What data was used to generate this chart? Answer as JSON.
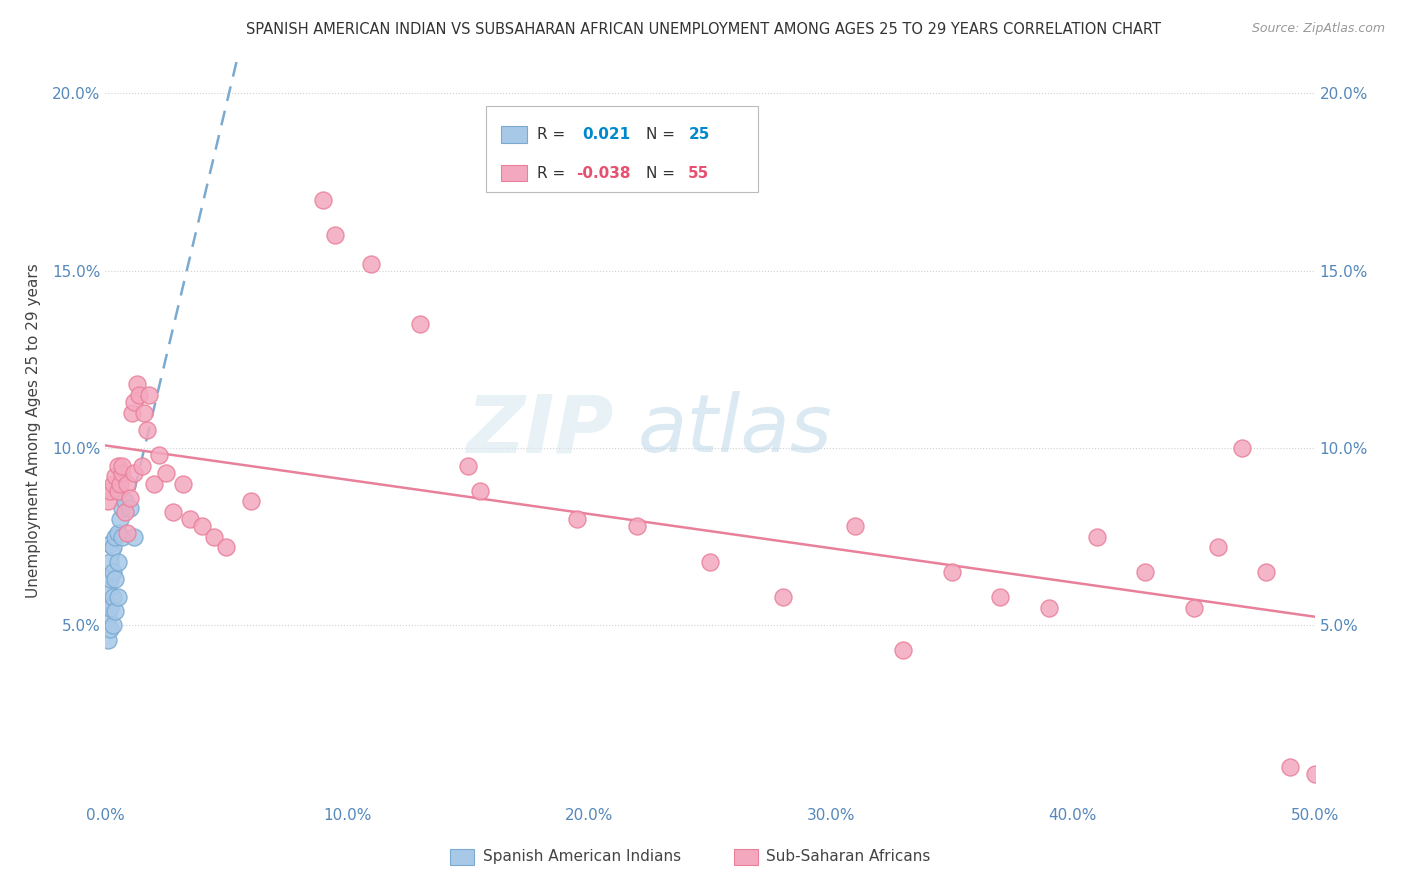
{
  "title": "SPANISH AMERICAN INDIAN VS SUBSAHARAN AFRICAN UNEMPLOYMENT AMONG AGES 25 TO 29 YEARS CORRELATION CHART",
  "source": "Source: ZipAtlas.com",
  "ylabel": "Unemployment Among Ages 25 to 29 years",
  "xlim": [
    0,
    0.5
  ],
  "ylim": [
    0,
    0.21
  ],
  "xtick_vals": [
    0.0,
    0.1,
    0.2,
    0.3,
    0.4,
    0.5
  ],
  "xtick_labels": [
    "0.0%",
    "10.0%",
    "20.0%",
    "30.0%",
    "40.0%",
    "50.0%"
  ],
  "ytick_vals": [
    0.0,
    0.05,
    0.1,
    0.15,
    0.2
  ],
  "ytick_labels": [
    "",
    "5.0%",
    "10.0%",
    "15.0%",
    "20.0%"
  ],
  "watermark": "ZIPatlas",
  "color_blue": "#a8c8e8",
  "color_pink": "#f4a8c0",
  "edge_blue": "#7aaad0",
  "edge_pink": "#e8809a",
  "trendline_blue_color": "#7aaad0",
  "trendline_pink_color": "#e8809a",
  "label_blue": "Spanish American Indians",
  "label_pink": "Sub-Saharan Africans",
  "blue_x": [
    0.001,
    0.001,
    0.001,
    0.001,
    0.002,
    0.002,
    0.002,
    0.002,
    0.002,
    0.003,
    0.003,
    0.003,
    0.003,
    0.004,
    0.004,
    0.004,
    0.005,
    0.005,
    0.005,
    0.006,
    0.007,
    0.007,
    0.008,
    0.01,
    0.012
  ],
  "blue_y": [
    0.046,
    0.052,
    0.056,
    0.06,
    0.049,
    0.055,
    0.063,
    0.068,
    0.073,
    0.05,
    0.058,
    0.065,
    0.072,
    0.054,
    0.063,
    0.075,
    0.058,
    0.068,
    0.076,
    0.08,
    0.075,
    0.083,
    0.085,
    0.083,
    0.075
  ],
  "pink_x": [
    0.001,
    0.002,
    0.003,
    0.004,
    0.005,
    0.005,
    0.006,
    0.007,
    0.007,
    0.008,
    0.009,
    0.009,
    0.01,
    0.011,
    0.012,
    0.012,
    0.013,
    0.014,
    0.015,
    0.016,
    0.017,
    0.018,
    0.02,
    0.022,
    0.025,
    0.028,
    0.032,
    0.035,
    0.04,
    0.045,
    0.05,
    0.06,
    0.09,
    0.095,
    0.11,
    0.13,
    0.15,
    0.155,
    0.195,
    0.22,
    0.25,
    0.28,
    0.31,
    0.33,
    0.35,
    0.37,
    0.39,
    0.41,
    0.43,
    0.45,
    0.46,
    0.47,
    0.48,
    0.49,
    0.5
  ],
  "pink_y": [
    0.085,
    0.088,
    0.09,
    0.092,
    0.088,
    0.095,
    0.09,
    0.093,
    0.095,
    0.082,
    0.076,
    0.09,
    0.086,
    0.11,
    0.093,
    0.113,
    0.118,
    0.115,
    0.095,
    0.11,
    0.105,
    0.115,
    0.09,
    0.098,
    0.093,
    0.082,
    0.09,
    0.08,
    0.078,
    0.075,
    0.072,
    0.085,
    0.17,
    0.16,
    0.152,
    0.135,
    0.095,
    0.088,
    0.08,
    0.078,
    0.068,
    0.058,
    0.078,
    0.043,
    0.065,
    0.058,
    0.055,
    0.075,
    0.065,
    0.055,
    0.072,
    0.1,
    0.065,
    0.01,
    0.008
  ]
}
